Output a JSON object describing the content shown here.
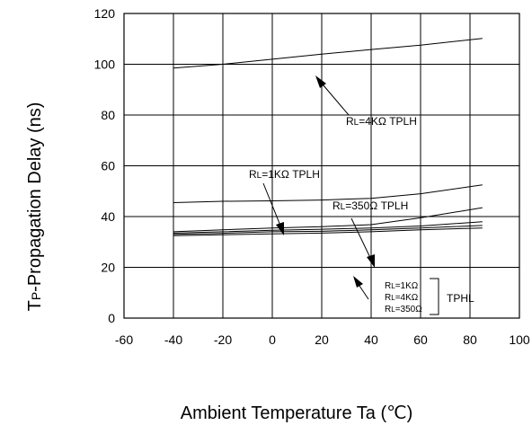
{
  "chart_data": {
    "type": "line",
    "title": "",
    "xlabel": "Ambient Temperature Ta (℃)",
    "ylabel_main": "T",
    "ylabel_sub": "P",
    "ylabel_rest": "-Propagation Delay (ns)",
    "xlim": [
      -60,
      100
    ],
    "ylim": [
      0,
      120
    ],
    "x_ticks": [
      -60,
      -40,
      -20,
      0,
      20,
      40,
      60,
      80,
      100
    ],
    "y_ticks": [
      0,
      20,
      40,
      60,
      80,
      100,
      120
    ],
    "grid": true,
    "series": [
      {
        "x": [
          -40,
          -20,
          0,
          20,
          40,
          60,
          85
        ],
        "y": [
          98.5,
          100,
          102,
          104,
          105.8,
          107.5,
          110.2
        ]
      },
      {
        "x": [
          -40,
          -20,
          0,
          20,
          40,
          60,
          85
        ],
        "y": [
          45.5,
          46,
          46.2,
          46.5,
          47.2,
          49,
          52.5
        ]
      },
      {
        "x": [
          -40,
          -20,
          0,
          20,
          40,
          60,
          85
        ],
        "y": [
          34,
          34.8,
          35.5,
          36,
          36.8,
          39.5,
          43.5
        ]
      },
      {
        "x": [
          -40,
          -20,
          0,
          20,
          40,
          60,
          85
        ],
        "y": [
          33.5,
          34,
          34.6,
          35,
          35.5,
          36.3,
          38
        ]
      },
      {
        "x": [
          -40,
          -20,
          0,
          20,
          40,
          60,
          85
        ],
        "y": [
          33,
          33.4,
          34,
          34.2,
          34.8,
          35.5,
          36.5
        ]
      },
      {
        "x": [
          -40,
          -20,
          0,
          20,
          40,
          60,
          85
        ],
        "y": [
          32.5,
          32.8,
          33.2,
          33.5,
          34,
          34.8,
          35.5
        ]
      }
    ],
    "annotations": {
      "tplh_4k": {
        "r": "R",
        "sub": "L",
        "text": "=4KΩ TPLH"
      },
      "tplh_1k": {
        "r": "R",
        "sub": "L",
        "text": "=1KΩ TPLH"
      },
      "tplh_350": {
        "r": "R",
        "sub": "L",
        "text": "=350Ω TPLH"
      },
      "tphl_items": [
        {
          "r": "R",
          "sub": "L",
          "text": "=1KΩ"
        },
        {
          "r": "R",
          "sub": "L",
          "text": "=4KΩ"
        },
        {
          "r": "R",
          "sub": "L",
          "text": "=350Ω"
        }
      ],
      "tphl_label": "TPHL"
    }
  }
}
